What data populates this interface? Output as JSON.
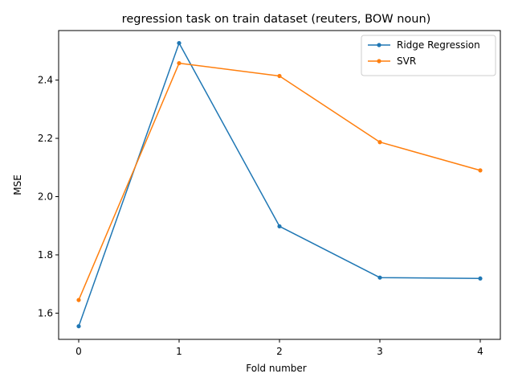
{
  "chart_data": {
    "type": "line",
    "title": "regression task on train dataset (reuters, BOW noun)",
    "xlabel": "Fold number",
    "ylabel": "MSE",
    "x": [
      0,
      1,
      2,
      3,
      4
    ],
    "xticks": [
      "0",
      "1",
      "2",
      "3",
      "4"
    ],
    "yticks": [
      "1.6",
      "1.8",
      "2.0",
      "2.2",
      "2.4"
    ],
    "ytick_values": [
      1.6,
      1.8,
      2.0,
      2.2,
      2.4
    ],
    "xlim": [
      -0.2,
      4.2
    ],
    "ylim": [
      1.51,
      2.57
    ],
    "grid": false,
    "legend_position": "top-right",
    "series": [
      {
        "name": "Ridge Regression",
        "color": "#1f77b4",
        "values": [
          1.555,
          2.527,
          1.898,
          1.722,
          1.719
        ]
      },
      {
        "name": "SVR",
        "color": "#ff7f0e",
        "values": [
          1.645,
          2.458,
          2.414,
          2.187,
          2.09
        ]
      }
    ]
  }
}
